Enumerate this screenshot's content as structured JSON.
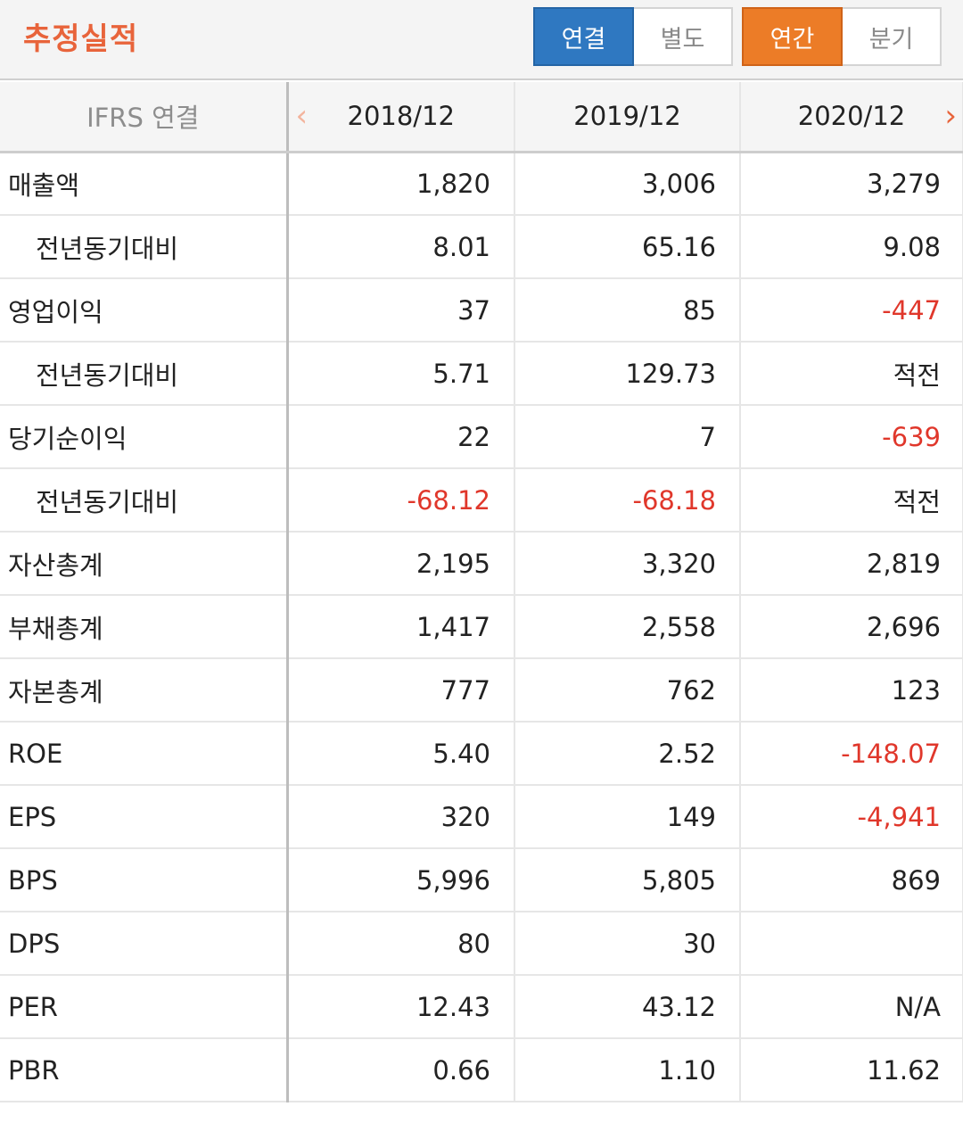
{
  "header": {
    "title": "추정실적",
    "group1": [
      "연결",
      "별도"
    ],
    "group2": [
      "연간",
      "분기"
    ]
  },
  "table": {
    "standard_label": "IFRS 연결",
    "prev_arrow": "‹",
    "next_arrow": "›",
    "years": [
      "2018/12",
      "2019/12",
      "2020/12"
    ],
    "rows": [
      {
        "label": "매출액",
        "sub": false,
        "values": [
          "1,820",
          "3,006",
          "3,279"
        ]
      },
      {
        "label": "전년동기대비",
        "sub": true,
        "values": [
          "8.01",
          "65.16",
          "9.08"
        ]
      },
      {
        "label": "영업이익",
        "sub": false,
        "values": [
          "37",
          "85",
          "-447"
        ]
      },
      {
        "label": "전년동기대비",
        "sub": true,
        "values": [
          "5.71",
          "129.73",
          "적전"
        ]
      },
      {
        "label": "당기순이익",
        "sub": false,
        "values": [
          "22",
          "7",
          "-639"
        ]
      },
      {
        "label": "전년동기대비",
        "sub": true,
        "values": [
          "-68.12",
          "-68.18",
          "적전"
        ]
      },
      {
        "label": "자산총계",
        "sub": false,
        "values": [
          "2,195",
          "3,320",
          "2,819"
        ]
      },
      {
        "label": "부채총계",
        "sub": false,
        "values": [
          "1,417",
          "2,558",
          "2,696"
        ]
      },
      {
        "label": "자본총계",
        "sub": false,
        "values": [
          "777",
          "762",
          "123"
        ]
      },
      {
        "label": "ROE",
        "sub": false,
        "values": [
          "5.40",
          "2.52",
          "-148.07"
        ]
      },
      {
        "label": "EPS",
        "sub": false,
        "values": [
          "320",
          "149",
          "-4,941"
        ]
      },
      {
        "label": "BPS",
        "sub": false,
        "values": [
          "5,996",
          "5,805",
          "869"
        ]
      },
      {
        "label": "DPS",
        "sub": false,
        "values": [
          "80",
          "30",
          ""
        ]
      },
      {
        "label": "PER",
        "sub": false,
        "values": [
          "12.43",
          "43.12",
          "N/A"
        ]
      },
      {
        "label": "PBR",
        "sub": false,
        "values": [
          "0.66",
          "1.10",
          "11.62"
        ]
      }
    ]
  },
  "colors": {
    "accent": "#e8643b",
    "active_blue": "#2f78c1",
    "active_orange": "#ec7c27",
    "negative": "#e0372b"
  }
}
